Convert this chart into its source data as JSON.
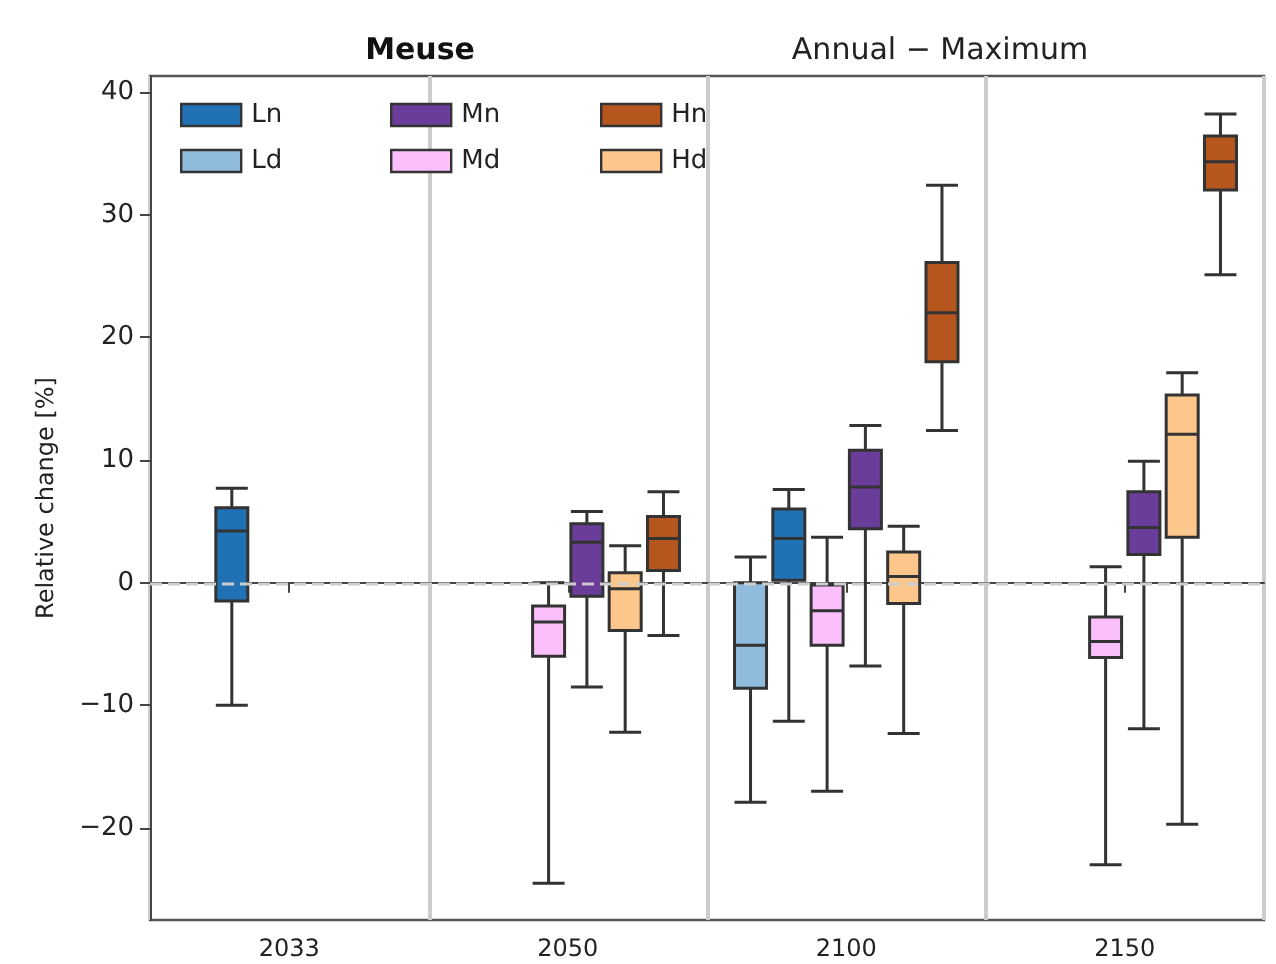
{
  "chart_data": {
    "type": "box",
    "title": "Meuse",
    "subtitle": "Annual − Maximum",
    "ylabel": "Relative change [%]",
    "categories": [
      "2033",
      "2050",
      "2100",
      "2150"
    ],
    "ylim": [
      -27.5,
      41.3
    ],
    "yticks": [
      -20,
      -10,
      0,
      10,
      20,
      30,
      40
    ],
    "grid": "x",
    "legend": "top left",
    "ref_lines": [
      {
        "axis": "y",
        "value": 0,
        "color": "#cccccc",
        "line_style": "dashed"
      }
    ],
    "series": [
      {
        "name": "Ld",
        "color": "#8fbcdc",
        "boxes": [
          null,
          null,
          {
            "low": -17.9,
            "q1": -8.6,
            "median": -5.1,
            "q3": 0,
            "high": 2.1
          },
          null
        ]
      },
      {
        "name": "Ln",
        "color": "#2171b5",
        "boxes": [
          {
            "low": -10.0,
            "q1": -1.5,
            "median": 4.2,
            "q3": 6.1,
            "high": 7.7
          },
          null,
          {
            "low": -11.3,
            "q1": 0.2,
            "median": 3.6,
            "q3": 6.0,
            "high": 7.6
          },
          null
        ]
      },
      {
        "name": "Md",
        "color": "#fbbffc",
        "boxes": [
          null,
          {
            "low": -24.5,
            "q1": -6.0,
            "median": -3.2,
            "q3": -1.9,
            "high": 0
          },
          {
            "low": -17.0,
            "q1": -5.1,
            "median": -2.3,
            "q3": -0.2,
            "high": 3.7
          },
          {
            "low": -23.0,
            "q1": -6.1,
            "median": -4.8,
            "q3": -2.8,
            "high": 1.3
          }
        ]
      },
      {
        "name": "Mn",
        "color": "#6a3d9a",
        "boxes": [
          null,
          {
            "low": -8.5,
            "q1": -1.1,
            "median": 3.3,
            "q3": 4.8,
            "high": 5.8
          },
          {
            "low": -6.8,
            "q1": 4.4,
            "median": 7.8,
            "q3": 10.8,
            "high": 12.8
          },
          {
            "low": -11.9,
            "q1": 2.3,
            "median": 4.5,
            "q3": 7.4,
            "high": 9.9
          }
        ]
      },
      {
        "name": "Hd",
        "color": "#fdc68a",
        "boxes": [
          null,
          {
            "low": -12.2,
            "q1": -3.9,
            "median": -0.5,
            "q3": 0.8,
            "high": 3.0
          },
          {
            "low": -12.3,
            "q1": -1.7,
            "median": 0.5,
            "q3": 2.5,
            "high": 4.6
          },
          {
            "low": -19.7,
            "q1": 3.7,
            "median": 12.1,
            "q3": 15.3,
            "high": 17.1
          }
        ]
      },
      {
        "name": "Hn",
        "color": "#b5561f",
        "boxes": [
          null,
          {
            "low": -4.3,
            "q1": 1.0,
            "median": 3.6,
            "q3": 5.4,
            "high": 7.4
          },
          {
            "low": 12.4,
            "q1": 18.0,
            "median": 22.0,
            "q3": 26.1,
            "high": 32.4
          },
          {
            "low": 25.1,
            "q1": 32.0,
            "median": 34.3,
            "q3": 36.4,
            "high": 38.2
          }
        ]
      }
    ]
  }
}
